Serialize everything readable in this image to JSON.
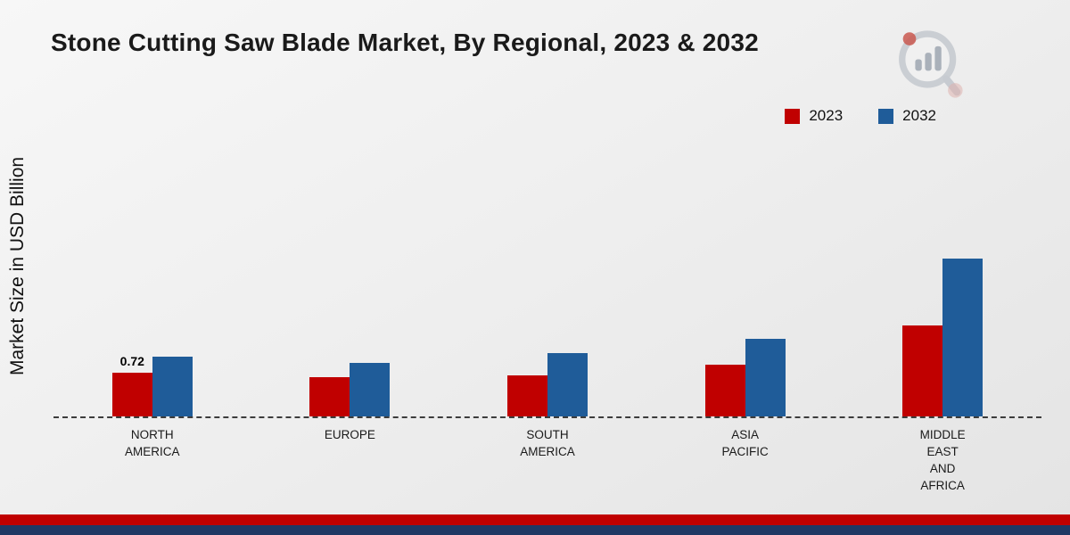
{
  "title": "Stone Cutting Saw Blade Market, By Regional, 2023 & 2032",
  "ylabel": "Market Size in USD Billion",
  "legend": [
    {
      "label": "2023",
      "color": "#c00000"
    },
    {
      "label": "2032",
      "color": "#1f5c99"
    }
  ],
  "chart_data": {
    "type": "bar",
    "title": "Stone Cutting Saw Blade Market, By Regional, 2023 & 2032",
    "xlabel": "",
    "ylabel": "Market Size in USD Billion",
    "categories": [
      "North America",
      "Europe",
      "South America",
      "Asia Pacific",
      "Middle East and Africa"
    ],
    "category_labels": [
      [
        "NORTH",
        "AMERICA"
      ],
      [
        "EUROPE"
      ],
      [
        "SOUTH",
        "AMERICA"
      ],
      [
        "ASIA",
        "PACIFIC"
      ],
      [
        "MIDDLE",
        "EAST",
        "AND",
        "AFRICA"
      ]
    ],
    "series": [
      {
        "name": "2023",
        "color": "#c00000",
        "values": [
          0.72,
          0.64,
          0.68,
          0.85,
          1.5
        ]
      },
      {
        "name": "2032",
        "color": "#1f5c99",
        "values": [
          0.98,
          0.88,
          1.05,
          1.28,
          2.6
        ]
      }
    ],
    "ylim": [
      0,
      3
    ],
    "grid": false,
    "legend_position": "top-right",
    "bar_value_labels": [
      {
        "category_index": 0,
        "series_index": 0,
        "text": "0.72"
      }
    ]
  },
  "colors": {
    "footer_red": "#c00000",
    "footer_navy": "#1f3864",
    "axis": "#3c3c3c"
  }
}
